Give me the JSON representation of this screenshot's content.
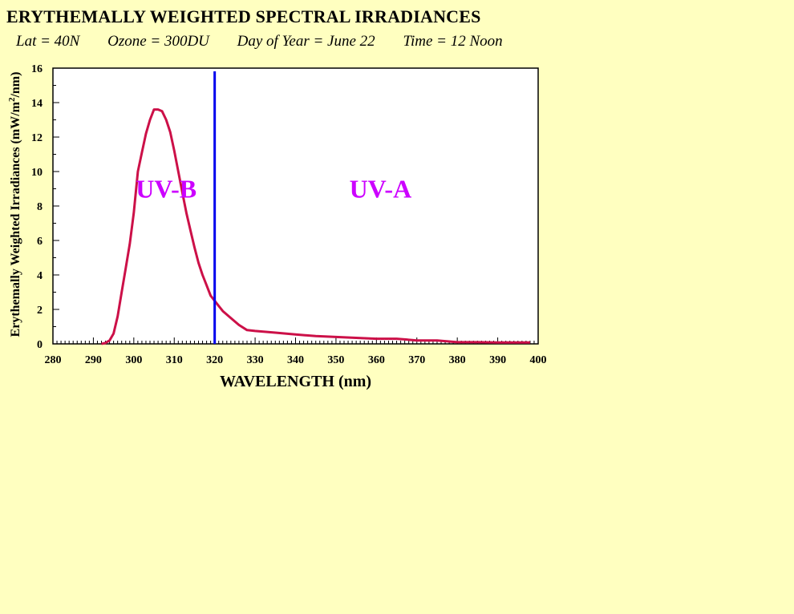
{
  "chart_data": {
    "type": "line",
    "title": "ERYTHEMALLY WEIGHTED SPECTRAL IRRADIANCES",
    "subtitle": {
      "lat": "Lat = 40N",
      "ozone": "Ozone = 300DU",
      "day": "Day of Year = June 22",
      "time": "Time = 12 Noon"
    },
    "xlabel": "WAVELENGTH (nm)",
    "ylabel_prefix": "Erythemally Weighted Irradiances (mW/m",
    "ylabel_sup": "2",
    "ylabel_suffix": "/nm)",
    "xlim": [
      280,
      400
    ],
    "ylim": [
      0,
      16
    ],
    "x_ticks": [
      280,
      290,
      300,
      310,
      320,
      330,
      340,
      350,
      360,
      370,
      380,
      390,
      400
    ],
    "y_ticks": [
      0,
      2,
      4,
      6,
      8,
      10,
      12,
      14,
      16
    ],
    "grid": false,
    "series": [
      {
        "x": [
          292,
          293,
          294,
          295,
          296,
          297,
          298,
          299,
          300,
          301,
          302,
          303,
          304,
          305,
          306,
          307,
          308,
          309,
          310,
          311,
          312,
          313,
          314,
          315,
          316,
          317,
          318,
          319,
          320,
          321,
          322,
          324,
          326,
          328,
          330,
          335,
          340,
          345,
          350,
          355,
          360,
          365,
          370,
          375,
          380,
          385,
          390,
          395,
          398
        ],
        "y": [
          0.0,
          0.05,
          0.2,
          0.6,
          1.6,
          3.0,
          4.4,
          5.8,
          7.6,
          10.0,
          11.1,
          12.2,
          13.0,
          13.6,
          13.6,
          13.5,
          13.0,
          12.3,
          11.2,
          10.0,
          8.8,
          7.6,
          6.6,
          5.6,
          4.7,
          4.0,
          3.4,
          2.8,
          2.5,
          2.2,
          1.9,
          1.5,
          1.1,
          0.8,
          0.75,
          0.65,
          0.55,
          0.45,
          0.4,
          0.35,
          0.3,
          0.3,
          0.2,
          0.2,
          0.1,
          0.1,
          0.08,
          0.08,
          0.08
        ],
        "color": "#cc1048"
      }
    ],
    "divider": {
      "x": 320,
      "color": "#0000ee"
    },
    "annotations": [
      {
        "text": "UV-B",
        "x": 308,
        "y": 9.0,
        "color": "#cc00ff"
      },
      {
        "text": "UV-A",
        "x": 361,
        "y": 9.0,
        "color": "#cc00ff"
      }
    ]
  }
}
